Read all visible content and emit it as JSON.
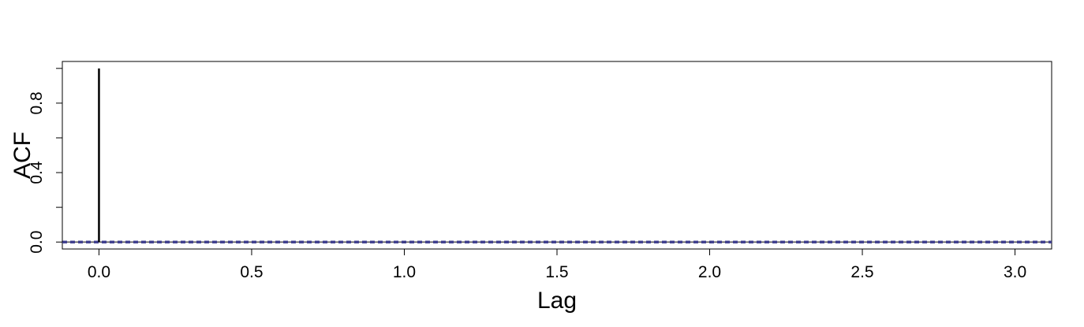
{
  "chart_data": {
    "type": "bar",
    "title": "",
    "xlabel": "Lag",
    "ylabel": "ACF",
    "xlim": [
      -0.12,
      3.12
    ],
    "ylim": [
      -0.04,
      1.04
    ],
    "x_ticks": [
      "0.0",
      "0.5",
      "1.0",
      "1.5",
      "2.0",
      "2.5",
      "3.0"
    ],
    "x_tick_values": [
      0,
      0.5,
      1.0,
      1.5,
      2.0,
      2.5,
      3.0
    ],
    "y_ticks": [
      "0.0",
      "0.4",
      "0.8"
    ],
    "y_tick_values": [
      0,
      0.4,
      0.8
    ],
    "y_minor_tick_values": [
      0.2,
      0.6,
      1.0
    ],
    "series": [
      {
        "x": [
          0,
          1,
          2,
          3
        ],
        "values": [
          1.0,
          0.001,
          0.001,
          0.001
        ]
      }
    ],
    "confidence_bounds": [
      0.003,
      -0.003
    ],
    "confidence_color": "#3b3b8c",
    "bar_color": "#000000",
    "grid": false,
    "legend": "none"
  }
}
